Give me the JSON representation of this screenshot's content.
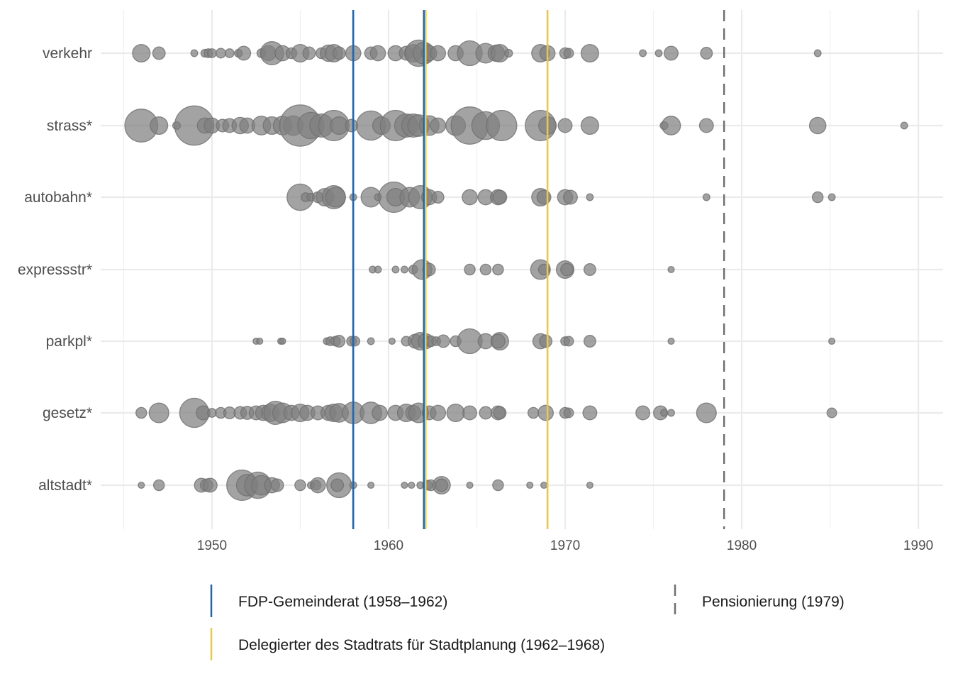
{
  "chart_data": {
    "type": "scatter",
    "subtype": "bubble-timeline",
    "title": "",
    "xlabel": "",
    "ylabel": "",
    "xlim": [
      1943.7,
      1991.4
    ],
    "x_ticks": [
      1950,
      1960,
      1970,
      1980,
      1990
    ],
    "x_tick_labels": [
      "1950",
      "1960",
      "1970",
      "1980",
      "1990"
    ],
    "grid": true,
    "point_color": "#7f7f7f",
    "categories": [
      "verkehr",
      "strass*",
      "autobahn*",
      "expressstr*",
      "parkpl*",
      "gesetz*",
      "altstadt*"
    ],
    "size_note": "relative bubble size (frequency)",
    "series": [
      {
        "name": "verkehr",
        "points": [
          [
            1946.0,
            4
          ],
          [
            1947.0,
            2
          ],
          [
            1949.0,
            0.6
          ],
          [
            1949.6,
            0.8
          ],
          [
            1949.8,
            1
          ],
          [
            1950.0,
            1
          ],
          [
            1950.5,
            1.2
          ],
          [
            1951.0,
            1
          ],
          [
            1951.5,
            0.8
          ],
          [
            1951.8,
            2.5
          ],
          [
            1952.8,
            1
          ],
          [
            1953.2,
            3
          ],
          [
            1953.4,
            7
          ],
          [
            1954.0,
            3
          ],
          [
            1954.5,
            1.5
          ],
          [
            1955.0,
            4
          ],
          [
            1955.5,
            2
          ],
          [
            1956.2,
            1.5
          ],
          [
            1956.6,
            3.5
          ],
          [
            1956.9,
            4
          ],
          [
            1957.2,
            2
          ],
          [
            1958.0,
            3
          ],
          [
            1959.0,
            2
          ],
          [
            1959.4,
            3
          ],
          [
            1960.4,
            3
          ],
          [
            1961.0,
            2.5
          ],
          [
            1961.4,
            4
          ],
          [
            1961.7,
            9
          ],
          [
            1962.0,
            6
          ],
          [
            1962.3,
            3
          ],
          [
            1962.8,
            3
          ],
          [
            1963.8,
            3
          ],
          [
            1964.6,
            8
          ],
          [
            1965.5,
            5
          ],
          [
            1966.1,
            3.5
          ],
          [
            1966.3,
            4
          ],
          [
            1966.8,
            0.8
          ],
          [
            1968.6,
            4
          ],
          [
            1969.0,
            3
          ],
          [
            1970.0,
            1.5
          ],
          [
            1970.2,
            1.2
          ],
          [
            1971.4,
            4
          ],
          [
            1974.4,
            0.6
          ],
          [
            1975.3,
            0.6
          ],
          [
            1976.0,
            2.5
          ],
          [
            1978.0,
            1.8
          ],
          [
            1984.3,
            0.6
          ]
        ]
      },
      {
        "name": "strass*",
        "points": [
          [
            1946.0,
            14
          ],
          [
            1947.0,
            4
          ],
          [
            1948.0,
            0.8
          ],
          [
            1949.0,
            20
          ],
          [
            1949.6,
            3
          ],
          [
            1950.0,
            3
          ],
          [
            1950.6,
            2
          ],
          [
            1951.0,
            2.5
          ],
          [
            1951.6,
            3.5
          ],
          [
            1952.0,
            3
          ],
          [
            1952.8,
            4.5
          ],
          [
            1953.4,
            4
          ],
          [
            1954.0,
            4.5
          ],
          [
            1954.6,
            5
          ],
          [
            1955.0,
            22
          ],
          [
            1955.6,
            9
          ],
          [
            1956.2,
            7
          ],
          [
            1956.9,
            12
          ],
          [
            1957.2,
            4
          ],
          [
            1957.9,
            2
          ],
          [
            1959.0,
            11
          ],
          [
            1959.6,
            4
          ],
          [
            1960.4,
            12
          ],
          [
            1961.0,
            7
          ],
          [
            1961.4,
            7
          ],
          [
            1961.7,
            6
          ],
          [
            1962.3,
            5
          ],
          [
            1962.8,
            3
          ],
          [
            1963.8,
            5
          ],
          [
            1964.6,
            18
          ],
          [
            1965.5,
            10
          ],
          [
            1966.4,
            12
          ],
          [
            1968.6,
            12
          ],
          [
            1969.0,
            4
          ],
          [
            1970.0,
            2.5
          ],
          [
            1971.4,
            4
          ],
          [
            1975.6,
            0.8
          ],
          [
            1976.0,
            4.5
          ],
          [
            1978.0,
            2.5
          ],
          [
            1984.3,
            3.5
          ],
          [
            1989.2,
            0.6
          ]
        ]
      },
      {
        "name": "autobahn*",
        "points": [
          [
            1955.0,
            9
          ],
          [
            1955.3,
            1
          ],
          [
            1955.6,
            0.8
          ],
          [
            1956.0,
            1.5
          ],
          [
            1956.4,
            4
          ],
          [
            1956.9,
            7
          ],
          [
            1957.0,
            5
          ],
          [
            1958.0,
            0.6
          ],
          [
            1959.0,
            5
          ],
          [
            1959.4,
            0.6
          ],
          [
            1960.3,
            12
          ],
          [
            1960.4,
            4
          ],
          [
            1961.2,
            5
          ],
          [
            1961.8,
            7
          ],
          [
            1962.3,
            3
          ],
          [
            1962.8,
            1.8
          ],
          [
            1964.6,
            3
          ],
          [
            1965.5,
            3
          ],
          [
            1966.2,
            3
          ],
          [
            1966.3,
            2.5
          ],
          [
            1968.6,
            4
          ],
          [
            1968.8,
            2.5
          ],
          [
            1970.0,
            3
          ],
          [
            1970.3,
            2.5
          ],
          [
            1971.4,
            0.6
          ],
          [
            1978.0,
            0.6
          ],
          [
            1984.3,
            1.5
          ],
          [
            1985.1,
            0.6
          ]
        ]
      },
      {
        "name": "expressstr*",
        "points": [
          [
            1959.1,
            0.6
          ],
          [
            1959.4,
            0.6
          ],
          [
            1960.4,
            0.6
          ],
          [
            1960.9,
            0.6
          ],
          [
            1961.4,
            1
          ],
          [
            1961.9,
            5
          ],
          [
            1962.3,
            2
          ],
          [
            1964.6,
            1.5
          ],
          [
            1965.5,
            1.5
          ],
          [
            1966.2,
            1.5
          ],
          [
            1968.6,
            5
          ],
          [
            1968.8,
            1.5
          ],
          [
            1970.0,
            4
          ],
          [
            1970.1,
            2
          ],
          [
            1971.4,
            1.8
          ],
          [
            1976.0,
            0.5
          ]
        ]
      },
      {
        "name": "parkpl*",
        "points": [
          [
            1952.5,
            0.5
          ],
          [
            1952.7,
            0.5
          ],
          [
            1953.9,
            0.5
          ],
          [
            1954.0,
            0.5
          ],
          [
            1956.5,
            0.6
          ],
          [
            1956.7,
            1
          ],
          [
            1957.0,
            1.2
          ],
          [
            1957.2,
            1.8
          ],
          [
            1957.9,
            1.2
          ],
          [
            1958.1,
            1.2
          ],
          [
            1959.0,
            0.6
          ],
          [
            1960.2,
            0.5
          ],
          [
            1961.0,
            1.2
          ],
          [
            1961.5,
            2.5
          ],
          [
            1961.8,
            4
          ],
          [
            1962.1,
            3
          ],
          [
            1962.4,
            1.5
          ],
          [
            1962.7,
            1
          ],
          [
            1963.1,
            2
          ],
          [
            1963.8,
            1.5
          ],
          [
            1964.6,
            8
          ],
          [
            1965.5,
            3
          ],
          [
            1966.3,
            4
          ],
          [
            1966.2,
            2.5
          ],
          [
            1968.6,
            3
          ],
          [
            1968.9,
            2
          ],
          [
            1970.0,
            1
          ],
          [
            1970.2,
            1.2
          ],
          [
            1971.4,
            1.8
          ],
          [
            1976.0,
            0.5
          ],
          [
            1985.1,
            0.5
          ]
        ]
      },
      {
        "name": "gesetz*",
        "points": [
          [
            1946.0,
            1.5
          ],
          [
            1947.0,
            5
          ],
          [
            1949.0,
            11
          ],
          [
            1949.5,
            2.5
          ],
          [
            1950.0,
            1
          ],
          [
            1950.5,
            1.5
          ],
          [
            1951.0,
            1.8
          ],
          [
            1951.6,
            2
          ],
          [
            1952.0,
            2.2
          ],
          [
            1952.5,
            2.5
          ],
          [
            1952.9,
            3
          ],
          [
            1953.3,
            4
          ],
          [
            1953.6,
            7
          ],
          [
            1954.0,
            5
          ],
          [
            1954.5,
            3
          ],
          [
            1955.0,
            4
          ],
          [
            1955.4,
            3
          ],
          [
            1956.0,
            2.5
          ],
          [
            1956.6,
            3
          ],
          [
            1956.9,
            4
          ],
          [
            1957.2,
            4.5
          ],
          [
            1958.0,
            6
          ],
          [
            1959.0,
            6
          ],
          [
            1959.5,
            3
          ],
          [
            1960.4,
            3
          ],
          [
            1961.0,
            4
          ],
          [
            1961.4,
            3
          ],
          [
            1961.7,
            5
          ],
          [
            1962.3,
            2.5
          ],
          [
            1962.8,
            3
          ],
          [
            1963.8,
            4
          ],
          [
            1964.6,
            2.5
          ],
          [
            1965.5,
            2
          ],
          [
            1966.2,
            2.5
          ],
          [
            1966.3,
            2
          ],
          [
            1968.2,
            1.5
          ],
          [
            1968.9,
            3
          ],
          [
            1970.0,
            1.5
          ],
          [
            1970.2,
            1.2
          ],
          [
            1971.4,
            2.5
          ],
          [
            1974.4,
            2.5
          ],
          [
            1975.4,
            2.5
          ],
          [
            1975.6,
            0.6
          ],
          [
            1976.0,
            0.6
          ],
          [
            1978.0,
            5
          ],
          [
            1985.1,
            1.2
          ]
        ]
      },
      {
        "name": "altstadt*",
        "points": [
          [
            1946.0,
            0.5
          ],
          [
            1947.0,
            1.5
          ],
          [
            1949.4,
            2.5
          ],
          [
            1949.7,
            2
          ],
          [
            1949.9,
            2.5
          ],
          [
            1951.7,
            12
          ],
          [
            1952.0,
            6
          ],
          [
            1952.6,
            9
          ],
          [
            1952.8,
            5
          ],
          [
            1953.4,
            3
          ],
          [
            1953.7,
            2
          ],
          [
            1955.0,
            1.5
          ],
          [
            1955.6,
            0.6
          ],
          [
            1955.9,
            1.2
          ],
          [
            1956.0,
            3
          ],
          [
            1957.2,
            8
          ],
          [
            1957.1,
            2
          ],
          [
            1958.0,
            0.6
          ],
          [
            1959.0,
            0.5
          ],
          [
            1960.9,
            0.5
          ],
          [
            1961.3,
            0.5
          ],
          [
            1961.8,
            0.6
          ],
          [
            1962.2,
            1.2
          ],
          [
            1962.4,
            1.5
          ],
          [
            1963.0,
            4
          ],
          [
            1963.0,
            2
          ],
          [
            1964.6,
            0.5
          ],
          [
            1966.2,
            1.5
          ],
          [
            1968.0,
            0.5
          ],
          [
            1968.8,
            0.5
          ],
          [
            1971.4,
            0.5
          ]
        ]
      }
    ],
    "reference_lines": [
      {
        "label": "FDP-Gemeinderat (1958–1962)",
        "x": [
          1958,
          1962
        ],
        "color": "#1f66b3",
        "style": "solid"
      },
      {
        "label": "Delegierter des Stadtrats für Stadtplanung (1962–1968)",
        "x": [
          1962.1,
          1969.0
        ],
        "color": "#f2c83a",
        "style": "solid"
      },
      {
        "label": "Pensionierung (1979)",
        "x": [
          1979
        ],
        "color": "#6e6e6e",
        "style": "dashed"
      }
    ],
    "legend": {
      "position": "bottom",
      "entries": [
        {
          "label": "FDP-Gemeinderat (1958–1962)",
          "color": "#1f66b3",
          "style": "solid"
        },
        {
          "label": "Pensionierung (1979)",
          "color": "#6e6e6e",
          "style": "dashed"
        },
        {
          "label": "Delegierter des Stadtrats für Stadtplanung (1962–1968)",
          "color": "#f2c83a",
          "style": "solid"
        }
      ]
    }
  }
}
